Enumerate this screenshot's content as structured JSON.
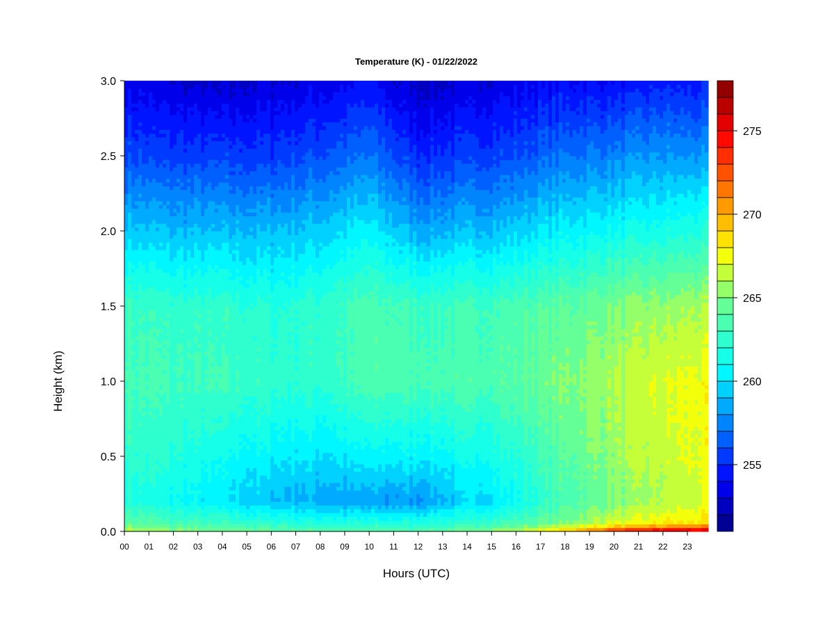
{
  "chart_data": {
    "type": "heatmap",
    "title": "Temperature (K) - 01/22/2022",
    "xlabel": "Hours (UTC)",
    "ylabel": "Height (km)",
    "x_ticks": [
      "00",
      "01",
      "02",
      "03",
      "04",
      "05",
      "06",
      "07",
      "08",
      "09",
      "10",
      "11",
      "12",
      "13",
      "14",
      "15",
      "16",
      "17",
      "18",
      "19",
      "20",
      "21",
      "22",
      "23"
    ],
    "y_ticks": [
      "0.0",
      "0.5",
      "1.0",
      "1.5",
      "2.0",
      "2.5",
      "3.0"
    ],
    "xlim": [
      0,
      23.85
    ],
    "ylim": [
      0,
      3.0
    ],
    "colorbar": {
      "min": 251,
      "max": 278,
      "step": 1,
      "tick_values": [
        255,
        260,
        265,
        270,
        275
      ],
      "tick_labels": [
        "255",
        "260",
        "265",
        "270",
        "275"
      ]
    },
    "x": [
      0,
      2,
      4,
      6,
      8,
      10,
      12,
      14,
      16,
      18,
      20,
      22,
      23.85
    ],
    "y": [
      0,
      0.05,
      0.2,
      0.5,
      1.0,
      1.5,
      2.0,
      2.5,
      3.0
    ],
    "z": [
      [
        266.5,
        265.5,
        265.0,
        264.5,
        264.0,
        264.0,
        264.0,
        264.5,
        266.5,
        269.0,
        274.0,
        276.5,
        277.0
      ],
      [
        264.5,
        263.5,
        263.0,
        262.5,
        262.0,
        262.0,
        262.0,
        262.5,
        263.5,
        265.0,
        267.0,
        268.0,
        268.5
      ],
      [
        262.0,
        261.0,
        260.0,
        259.0,
        258.5,
        258.0,
        258.0,
        259.5,
        261.0,
        263.5,
        265.0,
        266.0,
        267.0
      ],
      [
        262.5,
        262.0,
        261.0,
        260.5,
        260.0,
        260.5,
        260.5,
        261.0,
        262.0,
        264.0,
        265.5,
        266.5,
        267.5
      ],
      [
        263.5,
        263.0,
        263.0,
        262.5,
        262.5,
        263.5,
        263.5,
        263.5,
        264.0,
        265.0,
        266.0,
        267.0,
        267.5
      ],
      [
        263.0,
        262.5,
        262.5,
        262.0,
        262.5,
        263.5,
        263.0,
        263.0,
        263.5,
        264.0,
        265.0,
        265.5,
        266.0
      ],
      [
        259.5,
        259.0,
        259.0,
        259.0,
        259.5,
        260.5,
        258.5,
        259.0,
        259.5,
        260.5,
        261.0,
        261.5,
        262.0
      ],
      [
        256.0,
        255.5,
        255.5,
        255.5,
        256.0,
        257.0,
        255.0,
        255.5,
        256.0,
        257.0,
        257.5,
        258.0,
        258.0
      ],
      [
        253.5,
        253.0,
        252.5,
        253.0,
        253.5,
        254.0,
        252.5,
        253.0,
        253.5,
        254.0,
        254.0,
        254.5,
        254.5
      ]
    ]
  }
}
